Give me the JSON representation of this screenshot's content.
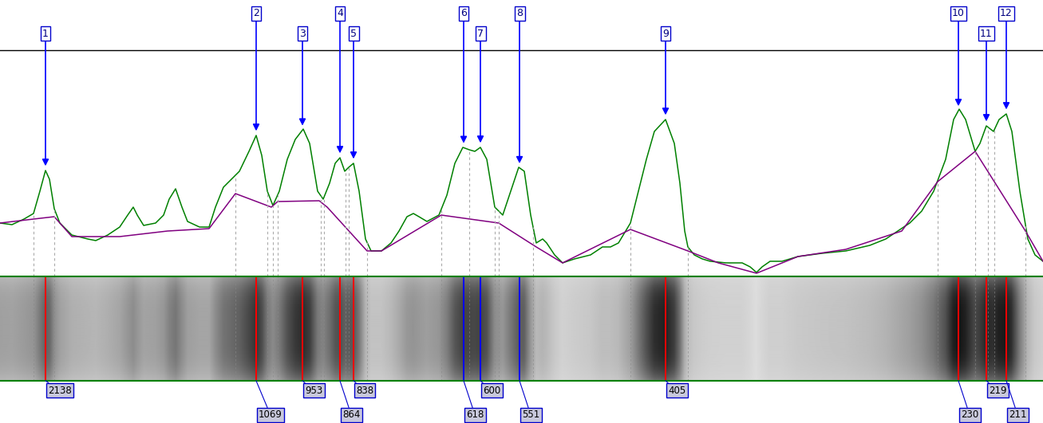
{
  "chart_data": {
    "type": "line",
    "tick_labels": false,
    "xlim": [
      0,
      1307
    ],
    "ylim": [
      0,
      284
    ],
    "series": [
      {
        "color": "#008000",
        "x": [
          0,
          15,
          30,
          42,
          50,
          57,
          62,
          68,
          75,
          90,
          110,
          120,
          135,
          150,
          160,
          167,
          172,
          180,
          195,
          205,
          212,
          220,
          228,
          235,
          250,
          262,
          270,
          280,
          290,
          300,
          312,
          321,
          328,
          335,
          342,
          350,
          360,
          370,
          380,
          388,
          398,
          405,
          413,
          420,
          426,
          432,
          437,
          443,
          450,
          458,
          465,
          478,
          490,
          500,
          510,
          518,
          525,
          535,
          550,
          560,
          570,
          580,
          588,
          595,
          602,
          610,
          620,
          630,
          640,
          650,
          657,
          665,
          672,
          680,
          685,
          695,
          705,
          720,
          740,
          755,
          765,
          775,
          790,
          800,
          810,
          820,
          834,
          845,
          852,
          858,
          862,
          870,
          880,
          890,
          910,
          930,
          940,
          948,
          955,
          965,
          980,
          1000,
          1030,
          1060,
          1090,
          1110,
          1125,
          1140,
          1155,
          1170,
          1185,
          1195,
          1202,
          1210,
          1222,
          1228,
          1236,
          1245,
          1252,
          1261,
          1268,
          1278,
          1288,
          1297,
          1307
        ],
        "values": [
          67,
          65,
          72,
          79,
          107,
          133,
          122,
          85,
          67,
          52,
          47,
          45,
          52,
          62,
          77,
          87,
          77,
          64,
          67,
          77,
          97,
          110,
          87,
          69,
          62,
          62,
          87,
          112,
          122,
          132,
          157,
          177,
          152,
          107,
          89,
          107,
          147,
          172,
          185,
          167,
          107,
          97,
          117,
          142,
          149,
          132,
          137,
          142,
          107,
          47,
          32,
          32,
          42,
          57,
          75,
          79,
          75,
          69,
          77,
          102,
          142,
          162,
          159,
          157,
          162,
          147,
          87,
          77,
          107,
          137,
          132,
          77,
          42,
          47,
          42,
          27,
          17,
          22,
          27,
          37,
          37,
          42,
          67,
          107,
          147,
          182,
          197,
          167,
          117,
          57,
          37,
          27,
          22,
          19,
          17,
          17,
          12,
          5,
          12,
          19,
          19,
          25,
          29,
          32,
          39,
          47,
          57,
          67,
          82,
          107,
          147,
          197,
          210,
          197,
          157,
          167,
          189,
          182,
          197,
          204,
          182,
          107,
          47,
          27,
          19
        ]
      },
      {
        "color": "#800080",
        "x": [
          0,
          42,
          68,
          90,
          150,
          210,
          262,
          295,
          340,
          348,
          400,
          410,
          460,
          478,
          553,
          625,
          672,
          705,
          790,
          862,
          900,
          948,
          1000,
          1060,
          1130,
          1175,
          1222,
          1285,
          1307
        ],
        "values": [
          67,
          72,
          75,
          50,
          50,
          57,
          60,
          104,
          87,
          94,
          95,
          87,
          32,
          32,
          77,
          67,
          37,
          17,
          59,
          32,
          17,
          4,
          25,
          34,
          57,
          119,
          157,
          57,
          19
        ]
      }
    ],
    "peaks": [
      {
        "number": 1,
        "x": 57,
        "size": 2138,
        "color": "#ff0000"
      },
      {
        "number": 2,
        "x": 321,
        "size": 1069,
        "color": "#ff0000"
      },
      {
        "number": 3,
        "x": 379,
        "size": 953,
        "color": "#ff0000"
      },
      {
        "number": 4,
        "x": 426,
        "size": 864,
        "color": "#ff0000"
      },
      {
        "number": 5,
        "x": 443,
        "size": 838,
        "color": "#ff0000"
      },
      {
        "number": 6,
        "x": 581,
        "size": 618,
        "color": "#0000ff"
      },
      {
        "number": 7,
        "x": 602,
        "size": 600,
        "color": "#0000ff"
      },
      {
        "number": 8,
        "x": 651,
        "size": 551,
        "color": "#0000ff"
      },
      {
        "number": 9,
        "x": 834,
        "size": 405,
        "color": "#ff0000"
      },
      {
        "number": 10,
        "x": 1201,
        "size": 230,
        "color": "#ff0000"
      },
      {
        "number": 11,
        "x": 1236,
        "size": 219,
        "color": "#ff0000"
      },
      {
        "number": 12,
        "x": 1261,
        "size": 211,
        "color": "#ff0000"
      }
    ],
    "peak_bounds": [
      42,
      68,
      295,
      335,
      342,
      348,
      402,
      406,
      433,
      437,
      460,
      553,
      588,
      620,
      625,
      668,
      790,
      862,
      1175,
      1222,
      1238,
      1246,
      1285
    ]
  }
}
